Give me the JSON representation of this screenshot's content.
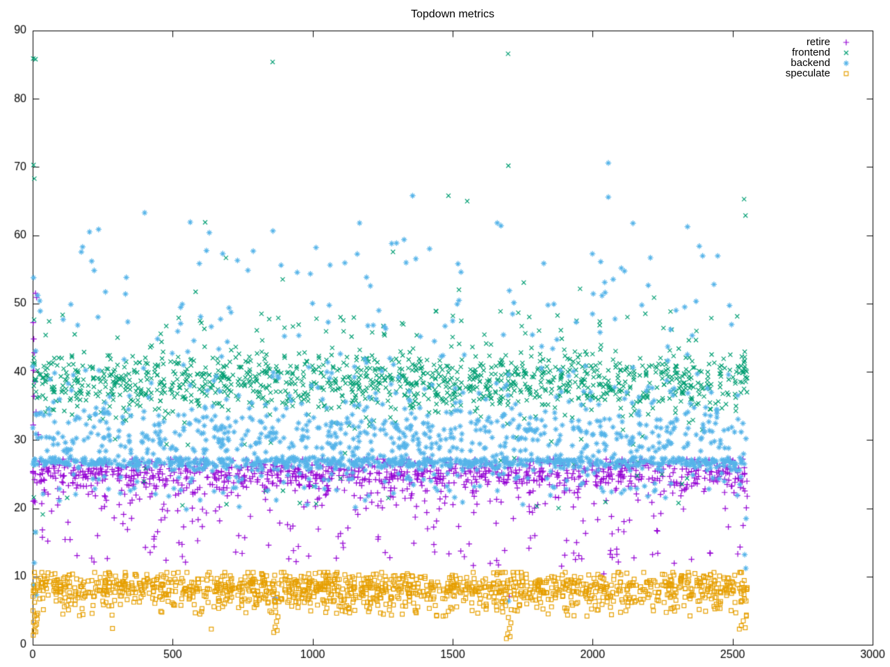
{
  "figure": {
    "title": "Topdown metrics"
  },
  "chart_data": {
    "type": "scatter",
    "title": "Topdown metrics",
    "xlabel": "",
    "ylabel": "",
    "xlim": [
      0,
      3000
    ],
    "ylim": [
      0,
      90
    ],
    "x_ticks": [
      0,
      500,
      1000,
      1500,
      2000,
      2500,
      3000
    ],
    "y_ticks": [
      0,
      10,
      20,
      30,
      40,
      50,
      60,
      70,
      80,
      90
    ],
    "grid": false,
    "legend_position": "top-right-inside",
    "border": "box-with-mirrored-inward-ticks",
    "background_color": "#ffffff",
    "axis_color": "#000000",
    "seed": 1337,
    "data_x_extent": [
      0,
      2552
    ],
    "series": [
      {
        "name": "retire",
        "marker": "plus",
        "color": "#9400d3",
        "n": 1150,
        "x_min": 0,
        "x_max": 2552,
        "components": [
          {
            "w": 0.62,
            "type": "normal",
            "mu": 25.2,
            "sigma": 1.1,
            "clamp": [
              21.5,
              27.2
            ]
          },
          {
            "w": 0.25,
            "type": "normal",
            "mu": 23.0,
            "sigma": 2.0,
            "clamp": [
              17.0,
              26.6
            ]
          },
          {
            "w": 0.13,
            "type": "uniform",
            "lo": 11.5,
            "hi": 22.0
          }
        ],
        "outliers": [
          [
            10,
            51.5
          ],
          [
            14,
            50.9
          ],
          [
            2,
            47.2
          ],
          [
            4,
            44.8
          ],
          [
            6,
            42.8
          ],
          [
            3,
            40.2
          ],
          [
            8,
            38.6
          ],
          [
            5,
            36.4
          ],
          [
            12,
            34.1
          ],
          [
            2,
            32.2
          ],
          [
            20,
            30.8
          ],
          [
            866,
            6.9
          ],
          [
            1702,
            7.1
          ],
          [
            2040,
            10.4
          ]
        ]
      },
      {
        "name": "frontend",
        "marker": "cross",
        "color": "#009e73",
        "n": 1350,
        "x_min": 0,
        "x_max": 2552,
        "components": [
          {
            "w": 0.9,
            "type": "normal",
            "mu": 38.6,
            "sigma": 2.3,
            "clamp": [
              31.5,
              46.5
            ]
          },
          {
            "w": 0.055,
            "type": "uniform",
            "lo": 44.5,
            "hi": 49.0
          },
          {
            "w": 0.035,
            "type": "uniform",
            "lo": 20.0,
            "hi": 33.0
          },
          {
            "w": 0.01,
            "type": "uniform",
            "lo": 49.0,
            "hi": 62.0
          }
        ],
        "outliers": [
          [
            2,
            85.9
          ],
          [
            10,
            85.8
          ],
          [
            857,
            85.4
          ],
          [
            1698,
            86.6
          ],
          [
            3,
            70.3
          ],
          [
            6,
            68.3
          ],
          [
            1699,
            70.2
          ],
          [
            1485,
            65.8
          ],
          [
            1552,
            65.0
          ],
          [
            2541,
            65.3
          ],
          [
            2546,
            62.9
          ],
          [
            616,
            61.9
          ],
          [
            10,
            16.5
          ],
          [
            36,
            19.1
          ],
          [
            4,
            21.6
          ]
        ]
      },
      {
        "name": "backend",
        "marker": "asterisk",
        "color": "#56b4e9",
        "n": 1600,
        "x_min": 0,
        "x_max": 2552,
        "components": [
          {
            "w": 0.4,
            "type": "normal",
            "mu": 26.7,
            "sigma": 0.45,
            "clamp": [
              25.6,
              28.2
            ]
          },
          {
            "w": 0.27,
            "type": "normal",
            "mu": 30.5,
            "sigma": 2.4,
            "clamp": [
              27.0,
              38.0
            ]
          },
          {
            "w": 0.18,
            "type": "halfup",
            "base": 28.0,
            "scale": 9.0,
            "max": 62.0
          },
          {
            "w": 0.1,
            "type": "normal",
            "mu": 24.0,
            "sigma": 1.6,
            "clamp": [
              19.5,
              27.0
            ]
          },
          {
            "w": 0.05,
            "type": "uniform",
            "lo": 45.0,
            "hi": 62.0
          }
        ],
        "outliers": [
          [
            3,
            53.8
          ],
          [
            18,
            51.2
          ],
          [
            27,
            48.9
          ],
          [
            2056,
            70.6
          ],
          [
            2056,
            65.6
          ],
          [
            1357,
            65.8
          ],
          [
            400,
            63.3
          ],
          [
            203,
            60.5
          ],
          [
            10,
            16.5
          ],
          [
            6,
            12.0
          ],
          [
            3,
            8.8
          ],
          [
            13,
            7.3
          ],
          [
            866,
            6.8
          ],
          [
            870,
            21.2
          ],
          [
            1700,
            6.4
          ],
          [
            2543,
            13.2
          ],
          [
            2548,
            18.5
          ],
          [
            2547,
            11.2
          ]
        ]
      },
      {
        "name": "speculate",
        "marker": "square-open",
        "color": "#e69f00",
        "n": 1400,
        "x_min": 0,
        "x_max": 2552,
        "components": [
          {
            "w": 0.72,
            "type": "normal",
            "mu": 8.6,
            "sigma": 1.05,
            "clamp": [
              6.2,
              10.6
            ]
          },
          {
            "w": 0.22,
            "type": "normal",
            "mu": 6.6,
            "sigma": 1.0,
            "clamp": [
              4.3,
              8.5
            ]
          },
          {
            "w": 0.06,
            "type": "uniform",
            "lo": 4.2,
            "hi": 6.0
          }
        ],
        "outliers": [
          [
            2,
            1.4
          ],
          [
            5,
            2.1
          ],
          [
            9,
            2.8
          ],
          [
            3,
            3.3
          ],
          [
            14,
            3.0
          ],
          [
            7,
            4.2
          ],
          [
            18,
            4.6
          ],
          [
            11,
            1.9
          ],
          [
            16,
            3.8
          ],
          [
            1,
            5.0
          ],
          [
            285,
            2.4
          ],
          [
            638,
            2.3
          ],
          [
            861,
            1.8
          ],
          [
            866,
            2.6
          ],
          [
            871,
            3.4
          ],
          [
            876,
            4.1
          ],
          [
            868,
            4.8
          ],
          [
            873,
            2.1
          ],
          [
            1692,
            0.9
          ],
          [
            1697,
            1.6
          ],
          [
            1703,
            2.4
          ],
          [
            1708,
            3.2
          ],
          [
            1699,
            4.0
          ],
          [
            1705,
            1.2
          ],
          [
            2524,
            2.3
          ],
          [
            2531,
            2.8
          ],
          [
            2538,
            3.5
          ],
          [
            2545,
            2.5
          ],
          [
            2549,
            4.2
          ]
        ]
      }
    ]
  }
}
